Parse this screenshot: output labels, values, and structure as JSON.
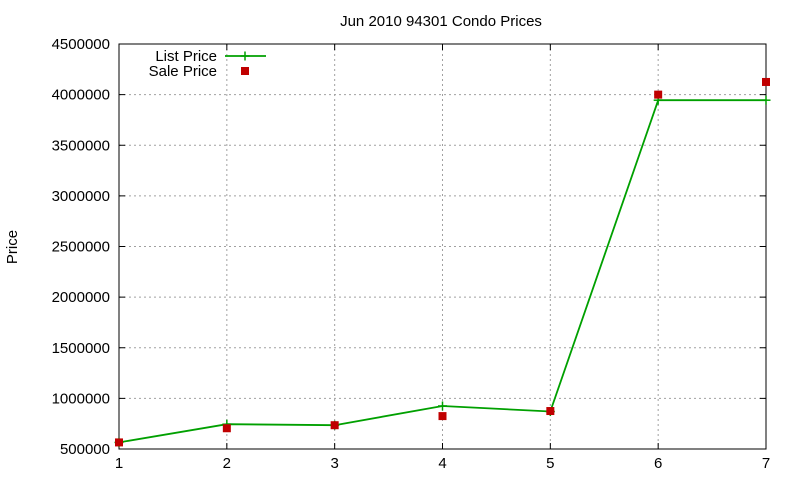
{
  "chart_data": {
    "type": "line",
    "title": "Jun 2010 94301 Condo Prices",
    "xlabel": "",
    "ylabel": "Price",
    "x": [
      1,
      2,
      3,
      4,
      5,
      6,
      7
    ],
    "xlim": [
      1,
      7
    ],
    "ylim": [
      500000,
      4500000
    ],
    "x_ticks": [
      "1",
      "2",
      "3",
      "4",
      "5",
      "6",
      "7"
    ],
    "y_ticks": [
      "500000",
      "1000000",
      "1500000",
      "2000000",
      "2500000",
      "3000000",
      "3500000",
      "4000000",
      "4500000"
    ],
    "grid": true,
    "legend_position": "top-left",
    "series": [
      {
        "name": "List Price",
        "style": "linespoints",
        "marker": "plus",
        "color": "#00a000",
        "values": [
          565000,
          745000,
          735000,
          925000,
          870000,
          3945000,
          3945000
        ]
      },
      {
        "name": "Sale Price",
        "style": "points",
        "marker": "square",
        "color": "#c00000",
        "values": [
          565000,
          705000,
          735000,
          825000,
          875000,
          4000000,
          4125000
        ]
      }
    ]
  }
}
